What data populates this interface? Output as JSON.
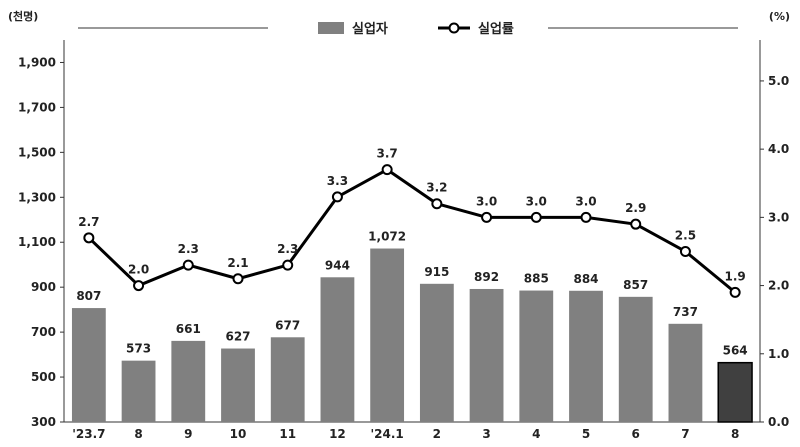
{
  "chart_data": {
    "type": "bar+line",
    "categories": [
      "'23.7",
      "8",
      "9",
      "10",
      "11",
      "12",
      "'24.1",
      "2",
      "3",
      "4",
      "5",
      "6",
      "7",
      "8"
    ],
    "series": [
      {
        "name": "실업자",
        "type": "bar",
        "axis": "left",
        "values": [
          807,
          573,
          661,
          627,
          677,
          944,
          1072,
          915,
          892,
          885,
          884,
          857,
          737,
          564
        ],
        "labels": [
          "807",
          "573",
          "661",
          "627",
          "677",
          "944",
          "1,072",
          "915",
          "892",
          "885",
          "884",
          "857",
          "737",
          "564"
        ]
      },
      {
        "name": "실업률",
        "type": "line",
        "axis": "right",
        "values": [
          2.7,
          2.0,
          2.3,
          2.1,
          2.3,
          3.3,
          3.7,
          3.2,
          3.0,
          3.0,
          3.0,
          2.9,
          2.5,
          1.9
        ],
        "labels": [
          "2.7",
          "2.0",
          "2.3",
          "2.1",
          "2.3",
          "3.3",
          "3.7",
          "3.2",
          "3.0",
          "3.0",
          "3.0",
          "2.9",
          "2.5",
          "1.9"
        ]
      }
    ],
    "y_left": {
      "unit": "(천명)",
      "ylim": [
        300,
        2000
      ],
      "ticks": [
        300,
        500,
        700,
        900,
        1100,
        1300,
        1500,
        1700,
        1900
      ],
      "tick_labels": [
        "300",
        "500",
        "700",
        "900",
        "1,100",
        "1,300",
        "1,500",
        "1,700",
        "1,900"
      ]
    },
    "y_right": {
      "unit": "(%)",
      "ylim": [
        0.0,
        5.6
      ],
      "ticks": [
        0.0,
        1.0,
        2.0,
        3.0,
        4.0,
        5.0
      ],
      "tick_labels": [
        "0.0",
        "1.0",
        "2.0",
        "3.0",
        "4.0",
        "5.0"
      ]
    },
    "legend_position": "top-center",
    "highlight_last_bar": true,
    "colors": {
      "bar": "#808080",
      "bar_highlight": "#404040",
      "line": "#000000",
      "marker_fill": "#ffffff"
    }
  }
}
